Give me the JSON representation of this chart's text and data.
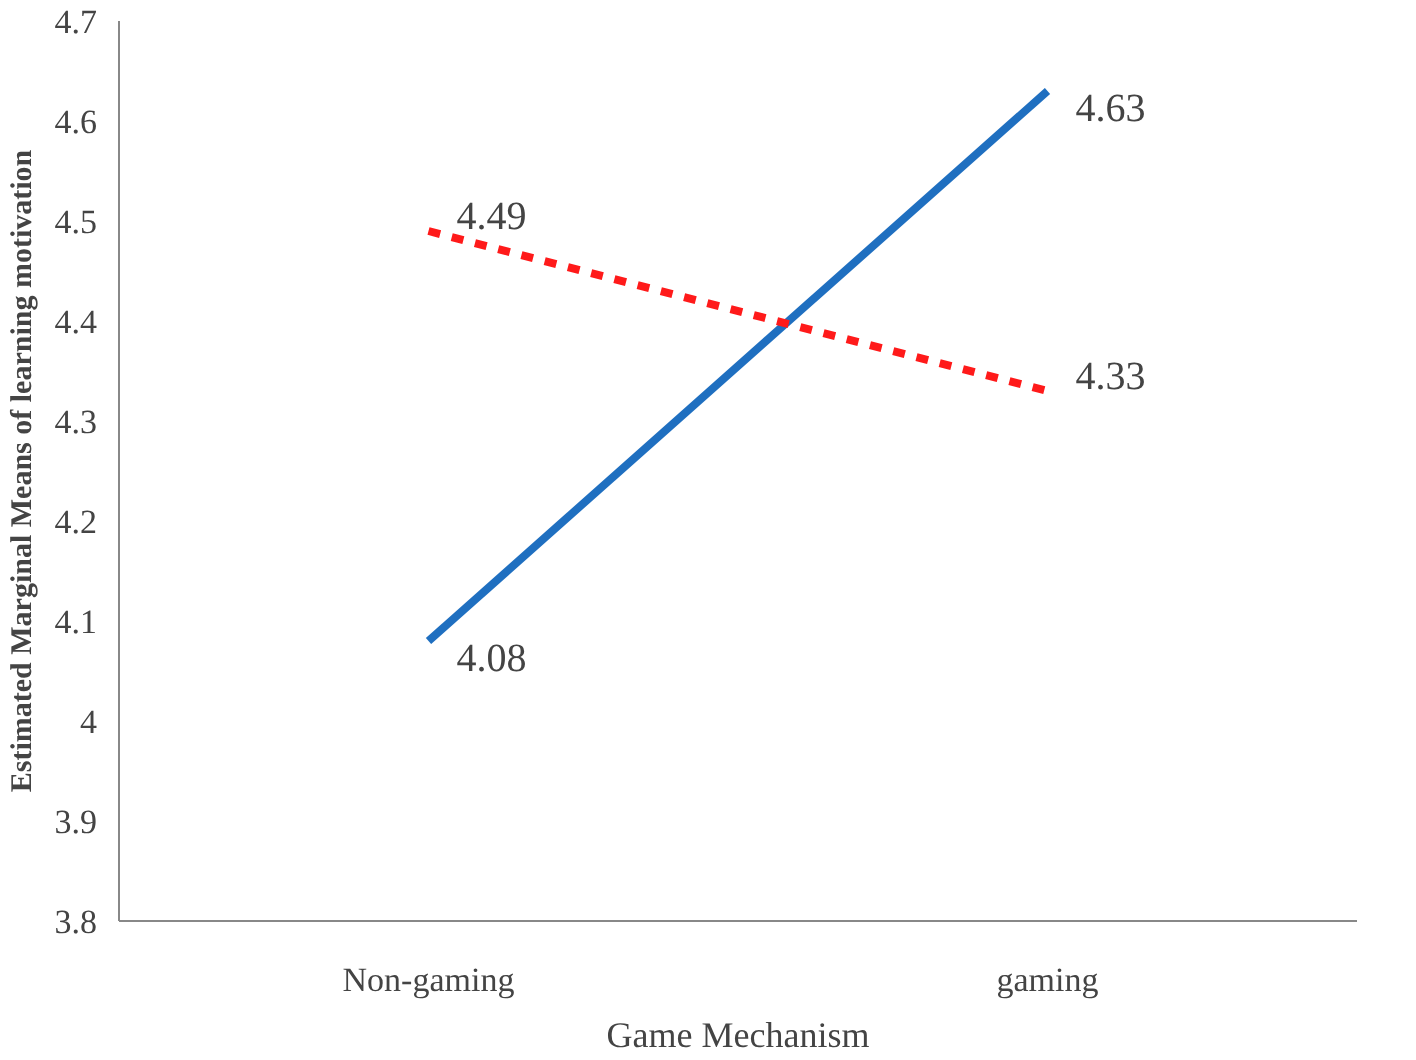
{
  "chart_data": {
    "type": "line",
    "xlabel": "Game Mechanism",
    "ylabel": "Estimated Marginal Means of learning motivation",
    "categories": [
      "Non-gaming",
      "gaming"
    ],
    "series": [
      {
        "color": "#1f6fc0",
        "values": [
          4.08,
          4.63
        ],
        "line_style": "solid"
      },
      {
        "color": "#ff1a1a",
        "values": [
          4.49,
          4.33
        ],
        "line_style": "dashed"
      }
    ],
    "ylim": [
      3.8,
      4.7
    ],
    "yticks": [
      3.8,
      3.9,
      4,
      4.1,
      4.2,
      4.3,
      4.4,
      4.5,
      4.6,
      4.7
    ],
    "data_labels": true
  }
}
